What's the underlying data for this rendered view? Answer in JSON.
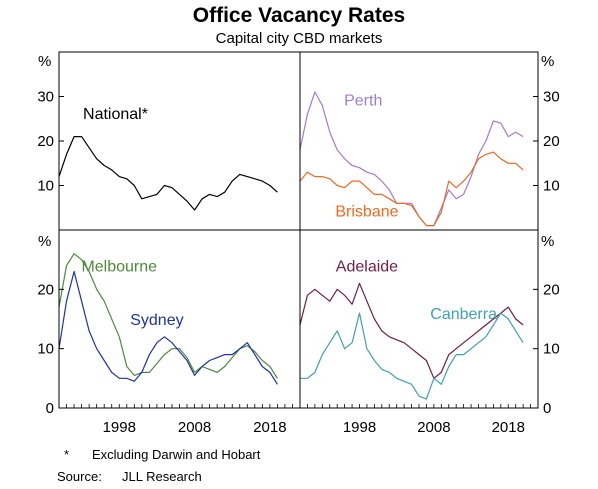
{
  "chart_data": {
    "type": "line",
    "title": "Office Vacancy Rates",
    "subtitle": "Capital city CBD markets",
    "unit": "%",
    "x_ticks": [
      "1998",
      "2008",
      "2018"
    ],
    "notes": {
      "footnote_marker": "*",
      "footnote_text": "Excluding Darwin and Hobart",
      "source_label": "Source:",
      "source_text": "JLL Research"
    },
    "panels": [
      {
        "id": "top-left",
        "xlim": [
          1990,
          2022
        ],
        "ylim": [
          0,
          40
        ],
        "y_ticks": [
          10,
          20,
          30
        ],
        "series": [
          {
            "name": "National*",
            "color": "#000000",
            "x": [
              1990,
              1991,
              1992,
              1993,
              1994,
              1995,
              1996,
              1997,
              1998,
              1999,
              2000,
              2001,
              2002,
              2003,
              2004,
              2005,
              2006,
              2007,
              2008,
              2009,
              2010,
              2011,
              2012,
              2013,
              2014,
              2015,
              2016,
              2017,
              2018,
              2019
            ],
            "y": [
              12,
              17,
              21,
              21,
              18.5,
              16,
              14.5,
              13.5,
              12,
              11.5,
              10,
              7,
              7.5,
              8,
              10,
              9.5,
              8,
              6.5,
              4.5,
              7,
              8,
              7.5,
              8.5,
              11,
              12.5,
              12,
              11.5,
              11,
              10,
              8.5
            ]
          }
        ]
      },
      {
        "id": "top-right",
        "xlim": [
          1990,
          2022
        ],
        "ylim": [
          0,
          40
        ],
        "y_ticks": [
          10,
          20,
          30
        ],
        "series": [
          {
            "name": "Perth",
            "color": "#a47ccf",
            "x": [
              1990,
              1991,
              1992,
              1993,
              1994,
              1995,
              1996,
              1997,
              1998,
              1999,
              2000,
              2001,
              2002,
              2003,
              2004,
              2005,
              2006,
              2007,
              2008,
              2009,
              2010,
              2011,
              2012,
              2013,
              2014,
              2015,
              2016,
              2017,
              2018,
              2019,
              2020
            ],
            "y": [
              18,
              26,
              31,
              28,
              22,
              18,
              16,
              14.5,
              14,
              13,
              12.5,
              11,
              9,
              6,
              6,
              6,
              3,
              1,
              1,
              5,
              9,
              7,
              8,
              12,
              17,
              20,
              24.5,
              24,
              21,
              22,
              21
            ]
          },
          {
            "name": "Brisbane",
            "color": "#ee6a1f",
            "x": [
              1990,
              1991,
              1992,
              1993,
              1994,
              1995,
              1996,
              1997,
              1998,
              1999,
              2000,
              2001,
              2002,
              2003,
              2004,
              2005,
              2006,
              2007,
              2008,
              2009,
              2010,
              2011,
              2012,
              2013,
              2014,
              2015,
              2016,
              2017,
              2018,
              2019,
              2020
            ],
            "y": [
              11,
              13,
              12,
              12,
              11.5,
              10,
              9.5,
              11,
              11,
              9.5,
              8,
              8,
              7,
              6,
              6,
              5.5,
              3,
              1,
              1,
              4,
              11,
              9.5,
              11,
              13,
              16,
              17,
              17.5,
              16,
              15,
              15,
              13.5
            ]
          }
        ]
      },
      {
        "id": "bottom-left",
        "xlim": [
          1990,
          2022
        ],
        "ylim": [
          0,
          30
        ],
        "y_ticks": [
          0,
          10,
          20
        ],
        "series": [
          {
            "name": "Melbourne",
            "color": "#4d8a3a",
            "x": [
              1990,
              1991,
              1992,
              1993,
              1994,
              1995,
              1996,
              1997,
              1998,
              1999,
              2000,
              2001,
              2002,
              2003,
              2004,
              2005,
              2006,
              2007,
              2008,
              2009,
              2010,
              2011,
              2012,
              2013,
              2014,
              2015,
              2016,
              2017,
              2018,
              2019
            ],
            "y": [
              17,
              24,
              26,
              25,
              23,
              20,
              18,
              15,
              12,
              7,
              5.5,
              6,
              6,
              7.5,
              9,
              10,
              10,
              8.5,
              6,
              7,
              6.5,
              6,
              7,
              8.5,
              10,
              10.5,
              9.5,
              8,
              7,
              5
            ]
          },
          {
            "name": "Sydney",
            "color": "#1c34a6",
            "x": [
              1990,
              1991,
              1992,
              1993,
              1994,
              1995,
              1996,
              1997,
              1998,
              1999,
              2000,
              2001,
              2002,
              2003,
              2004,
              2005,
              2006,
              2007,
              2008,
              2009,
              2010,
              2011,
              2012,
              2013,
              2014,
              2015,
              2016,
              2017,
              2018,
              2019
            ],
            "y": [
              10,
              18,
              23,
              18,
              13,
              10,
              8,
              6,
              5,
              5,
              4.5,
              6,
              9,
              11,
              12,
              11,
              9.5,
              8,
              5.5,
              7,
              8,
              8.5,
              9,
              9,
              10,
              11,
              9,
              7,
              6,
              4
            ]
          }
        ]
      },
      {
        "id": "bottom-right",
        "xlim": [
          1990,
          2022
        ],
        "ylim": [
          0,
          30
        ],
        "y_ticks": [
          0,
          10,
          20
        ],
        "series": [
          {
            "name": "Adelaide",
            "color": "#6f1e48",
            "x": [
              1990,
              1991,
              1992,
              1993,
              1994,
              1995,
              1996,
              1997,
              1998,
              1999,
              2000,
              2001,
              2002,
              2003,
              2004,
              2005,
              2006,
              2007,
              2008,
              2009,
              2010,
              2011,
              2012,
              2013,
              2014,
              2015,
              2016,
              2017,
              2018,
              2019,
              2020
            ],
            "y": [
              14,
              19,
              20,
              19,
              18,
              20,
              19,
              17.5,
              21,
              18,
              15,
              13,
              12,
              11.5,
              11,
              10,
              9,
              8,
              5,
              6,
              9,
              10,
              11,
              12,
              13,
              14,
              15,
              16,
              17,
              15,
              14
            ]
          },
          {
            "name": "Canberra",
            "color": "#3fa1b3",
            "x": [
              1990,
              1991,
              1992,
              1993,
              1994,
              1995,
              1996,
              1997,
              1998,
              1999,
              2000,
              2001,
              2002,
              2003,
              2004,
              2005,
              2006,
              2007,
              2008,
              2009,
              2010,
              2011,
              2012,
              2013,
              2014,
              2015,
              2016,
              2017,
              2018,
              2019,
              2020
            ],
            "y": [
              5,
              5,
              6,
              9,
              11,
              13,
              10,
              11,
              16,
              10,
              8,
              6.5,
              6,
              5,
              4.5,
              4,
              2,
              1.5,
              5,
              4,
              7,
              9,
              9,
              10,
              11,
              12,
              14,
              16,
              15,
              13,
              11
            ]
          }
        ]
      }
    ],
    "labels": [
      {
        "panel": "top-left",
        "text": "National*",
        "color": "#000000",
        "x": 1997.5,
        "y": 25
      },
      {
        "panel": "top-right",
        "text": "Perth",
        "color": "#a47ccf",
        "x": 1998.5,
        "y": 28
      },
      {
        "panel": "top-right",
        "text": "Brisbane",
        "color": "#ee6a1f",
        "x": 1999,
        "y": 3
      },
      {
        "panel": "bottom-left",
        "text": "Melbourne",
        "color": "#4d8a3a",
        "x": 1998,
        "y": 23
      },
      {
        "panel": "bottom-left",
        "text": "Sydney",
        "color": "#1c34a6",
        "x": 2003,
        "y": 14
      },
      {
        "panel": "bottom-right",
        "text": "Adelaide",
        "color": "#6f1e48",
        "x": 1999,
        "y": 23
      },
      {
        "panel": "bottom-right",
        "text": "Canberra",
        "color": "#3fa1b3",
        "x": 2012,
        "y": 15
      }
    ]
  }
}
